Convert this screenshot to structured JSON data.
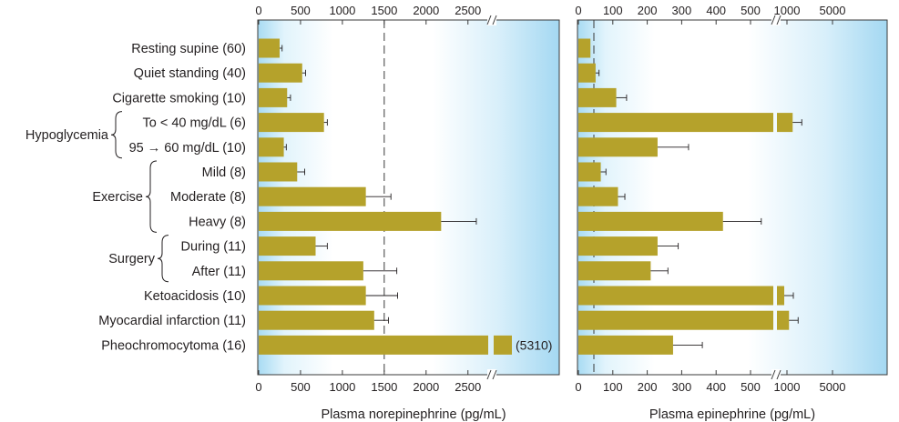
{
  "chart_data": [
    {
      "type": "bar",
      "orientation": "horizontal",
      "xlabel": "Plasma norepinephrine (pg/mL)",
      "tick_labels": [
        "0",
        "500",
        "1000",
        "1500",
        "2000",
        "2500"
      ],
      "axis_break": true,
      "reference_line": 1500,
      "categories": [
        "Resting supine (60)",
        "Quiet standing (40)",
        "Cigarette smoking (10)",
        "To < 40 mg/dL (6)",
        "95 → 60 mg/dL (10)",
        "Mild (8)",
        "Moderate (8)",
        "Heavy (8)",
        "During (11)",
        "After (11)",
        "Ketoacidosis (10)",
        "Myocardial infarction (11)",
        "Pheochromocytoma (16)"
      ],
      "values": [
        250,
        520,
        340,
        780,
        300,
        460,
        1280,
        2180,
        680,
        1250,
        1280,
        1380,
        5310
      ],
      "errors": [
        30,
        40,
        40,
        40,
        30,
        90,
        300,
        420,
        140,
        400,
        380,
        170,
        0
      ],
      "annotations": [
        {
          "category": "Pheochromocytoma (16)",
          "text": "(5310)"
        }
      ],
      "bar_color": "#b5a22b"
    },
    {
      "type": "bar",
      "orientation": "horizontal",
      "xlabel": "Plasma epinephrine (pg/mL)",
      "tick_labels": [
        "0",
        "100",
        "200",
        "300",
        "400",
        "500",
        "1000",
        "5000"
      ],
      "axis_break": true,
      "reference_line": 45,
      "categories": [
        "Resting supine (60)",
        "Quiet standing (40)",
        "Cigarette smoking (10)",
        "To < 40 mg/dL (6)",
        "95 → 60 mg/dL (10)",
        "Mild (8)",
        "Moderate (8)",
        "Heavy (8)",
        "During (11)",
        "After (11)",
        "Ketoacidosis (10)",
        "Myocardial infarction (11)",
        "Pheochromocytoma (16)"
      ],
      "values": [
        35,
        50,
        110,
        1500,
        230,
        65,
        115,
        420,
        230,
        210,
        510,
        1180,
        275
      ],
      "errors": [
        0,
        10,
        30,
        150,
        90,
        15,
        20,
        110,
        60,
        50,
        130,
        250,
        85
      ]
    }
  ],
  "groups": [
    {
      "label": "Hypoglycemia",
      "rows": [
        3,
        4
      ]
    },
    {
      "label": "Exercise",
      "rows": [
        5,
        7
      ]
    },
    {
      "label": "Surgery",
      "rows": [
        8,
        9
      ]
    }
  ],
  "style": {
    "panel_gradient": [
      "#ffffff",
      "#b2dff4"
    ],
    "frame": "#3a3a3a",
    "bar": "#b5a22b"
  }
}
